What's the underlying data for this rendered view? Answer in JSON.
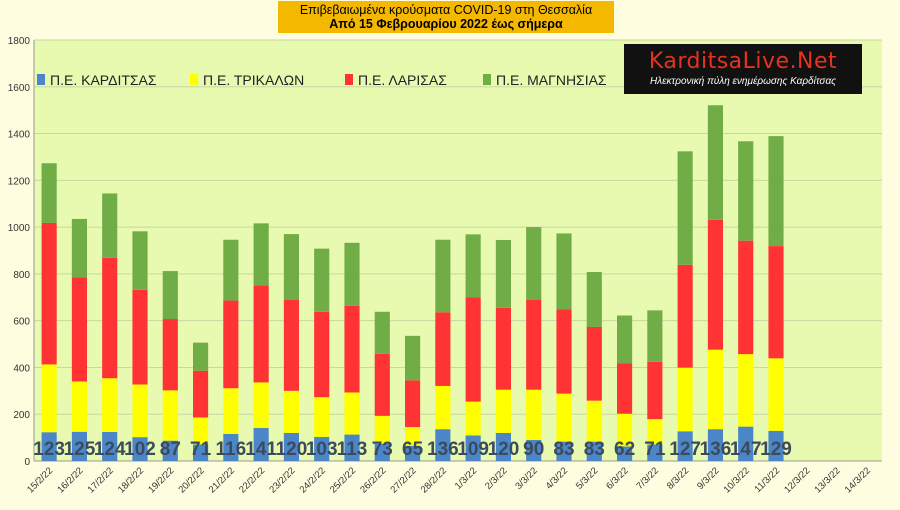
{
  "chart_data": {
    "type": "bar",
    "stacked": true,
    "title": "Επιβεβαιωμένα κρούσματα COVID-19 στη Θεσσαλία",
    "subtitle": "Από 15 Φεβρουαρίου 2022 έως σήμερα",
    "xlabel": "",
    "ylabel": "",
    "ylim": [
      0,
      1800
    ],
    "yticks": [
      "0",
      "200",
      "400",
      "600",
      "800",
      "1000",
      "1200",
      "1400",
      "1600",
      "1800"
    ],
    "grid": true,
    "legend_position": "top",
    "categories": [
      "15/2/22",
      "16/2/22",
      "17/2/22",
      "18/2/22",
      "19/2/22",
      "20/2/22",
      "21/2/22",
      "22/2/22",
      "23/2/22",
      "24/2/22",
      "25/2/22",
      "26/2/22",
      "27/2/22",
      "28/2/22",
      "1/3/22",
      "2/3/22",
      "3/3/22",
      "4/3/22",
      "5/3/22",
      "6/3/22",
      "7/3/22",
      "8/3/22",
      "9/3/22",
      "10/3/22",
      "11/3/22",
      "12/3/22",
      "13/3/22",
      "14/3/22"
    ],
    "series": [
      {
        "name": "Π.Ε. ΚΑΡΔΙΤΣΑΣ",
        "color": "#4a86c8",
        "values": [
          123,
          125,
          124,
          102,
          87,
          71,
          116,
          141,
          120,
          103,
          113,
          73,
          65,
          136,
          109,
          120,
          90,
          83,
          83,
          62,
          71,
          127,
          136,
          147,
          129,
          null,
          null,
          null
        ]
      },
      {
        "name": "Π.Ε. ΤΡΙΚΑΛΩΝ",
        "color": "#ffff00",
        "values": [
          290,
          215,
          230,
          225,
          215,
          115,
          195,
          195,
          180,
          170,
          180,
          120,
          80,
          185,
          145,
          185,
          215,
          205,
          175,
          140,
          108,
          272,
          340,
          310,
          310,
          null,
          null,
          null
        ]
      },
      {
        "name": "Π.Ε. ΛΑΡΙΣΑΣ",
        "color": "#ff3333",
        "values": [
          605,
          445,
          515,
          405,
          305,
          200,
          375,
          415,
          390,
          365,
          370,
          265,
          200,
          315,
          445,
          350,
          385,
          360,
          315,
          215,
          245,
          440,
          555,
          485,
          480,
          null,
          null,
          null
        ]
      },
      {
        "name": "Π.Ε. ΜΑΓΝΗΣΙΑΣ",
        "color": "#70ad47",
        "values": [
          255,
          250,
          275,
          250,
          205,
          120,
          260,
          265,
          280,
          270,
          270,
          180,
          190,
          310,
          270,
          290,
          310,
          325,
          235,
          205,
          220,
          485,
          490,
          425,
          470,
          null,
          null,
          null
        ]
      }
    ],
    "data_labels_series": 0
  },
  "logo": {
    "brand": "KarditsaLive.Net",
    "tagline": "Ηλεκτρονική πύλη ενημέρωσης Καρδίτσας"
  },
  "colors": {
    "background": "#fffde0",
    "plot_background": "#e8f9b0",
    "label_color": "#3c4a5c",
    "title_bg": "#f5b800"
  }
}
